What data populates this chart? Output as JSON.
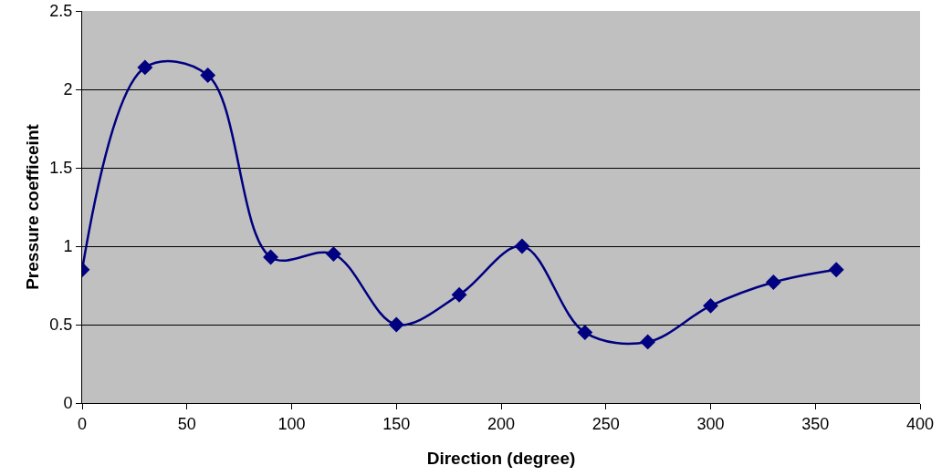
{
  "chart_data": {
    "type": "line",
    "xlabel": "Direction (degree)",
    "ylabel": "Pressure coefficeint",
    "x": [
      0,
      30,
      60,
      90,
      120,
      150,
      180,
      210,
      240,
      270,
      300,
      330,
      360
    ],
    "series": [
      {
        "color": "#000080",
        "values": [
          0.85,
          2.14,
          2.09,
          0.93,
          0.95,
          0.5,
          0.69,
          1.0,
          0.45,
          0.39,
          0.62,
          0.77,
          0.85
        ]
      }
    ],
    "xlim": [
      0,
      400
    ],
    "xticks": [
      0,
      50,
      100,
      150,
      200,
      250,
      300,
      350,
      400
    ],
    "ylim": [
      0,
      2.5
    ],
    "yticks": [
      0,
      0.5,
      1,
      1.5,
      2,
      2.5
    ],
    "grid": "y",
    "marker": "diamond",
    "line_style": "solid",
    "legend": false
  }
}
